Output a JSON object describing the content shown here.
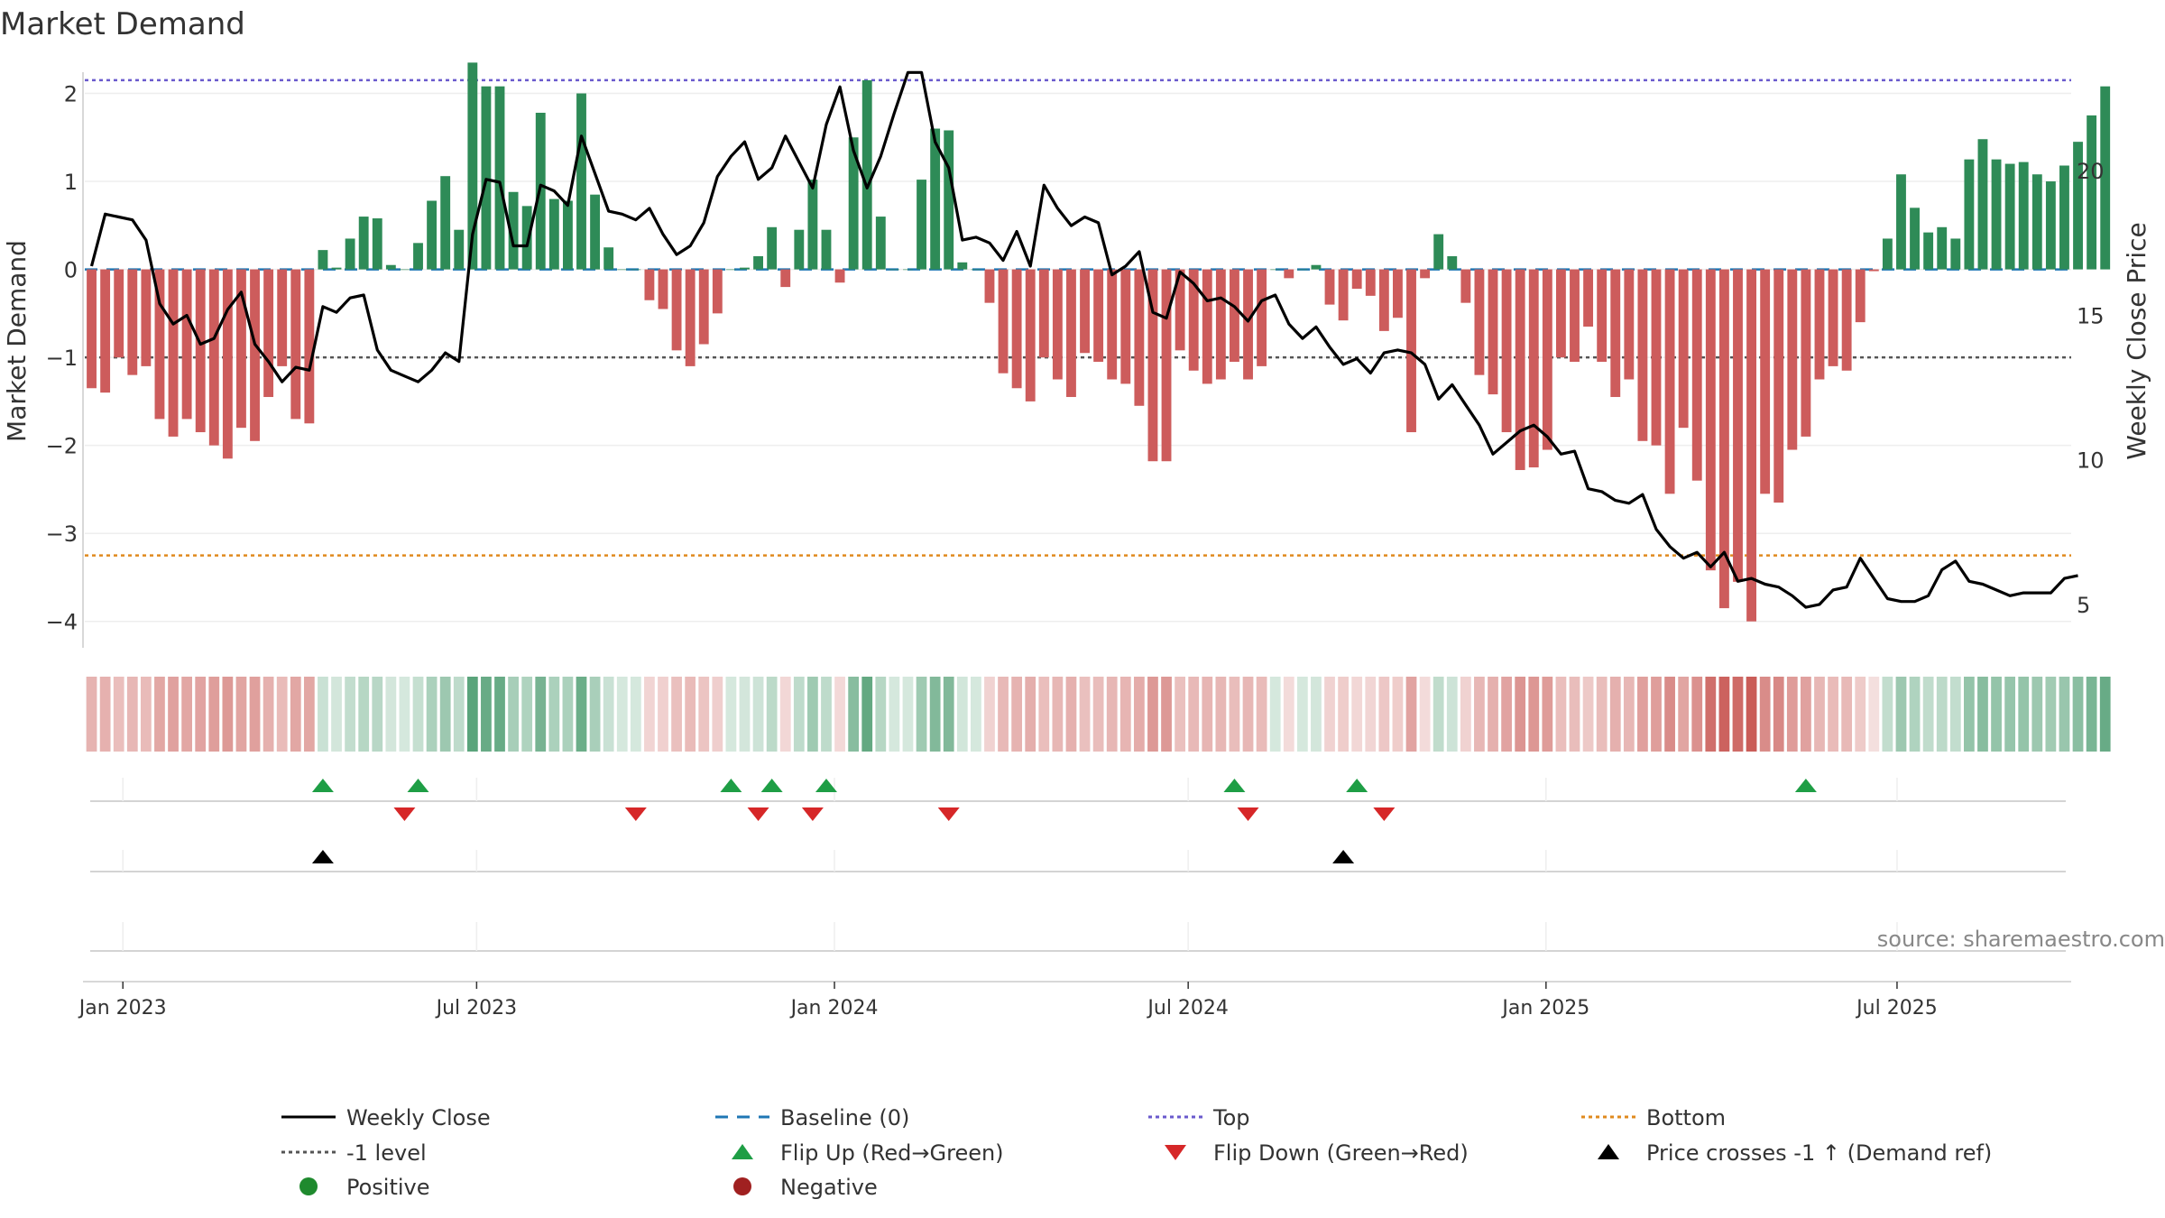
{
  "chart_data": {
    "type": "bar",
    "title": "Market Demand",
    "ylabel_left": "Market Demand",
    "ylabel_right": "Weekly Close Price",
    "ylim_left": [
      -4.3,
      2.6
    ],
    "ylim_right": [
      3.5,
      24.5
    ],
    "yticks_left": [
      2,
      1,
      0,
      -1,
      -2,
      -3,
      -4
    ],
    "yticks_left_labels": [
      "2",
      "1",
      "0",
      "−1",
      "−2",
      "−3",
      "−4"
    ],
    "yticks_right": [
      20,
      15,
      10,
      5
    ],
    "yticks_right_labels": [
      "20",
      "15",
      "10",
      "5"
    ],
    "x_start": "2022-12-26",
    "week_count": 146,
    "xticks": [
      {
        "week": 2.3,
        "label": "Jan 2023"
      },
      {
        "week": 28.3,
        "label": "Jul 2023"
      },
      {
        "week": 54.6,
        "label": "Jan 2024"
      },
      {
        "week": 80.6,
        "label": "Jul 2024"
      },
      {
        "week": 106.9,
        "label": "Jan 2025"
      },
      {
        "week": 132.7,
        "label": "Jul 2025"
      }
    ],
    "reference_lines": {
      "top": 2.15,
      "bottom": -3.25,
      "minus_one": -1,
      "baseline": 0
    },
    "demand": [
      -1.35,
      -1.4,
      -1.0,
      -1.2,
      -1.1,
      -1.7,
      -1.9,
      -1.7,
      -1.85,
      -2.0,
      -2.15,
      -1.8,
      -1.95,
      -1.45,
      -1.1,
      -1.7,
      -1.75,
      0.22,
      0.02,
      0.35,
      0.6,
      0.58,
      0.05,
      0.0,
      0.3,
      0.78,
      1.06,
      0.45,
      2.35,
      2.08,
      2.08,
      0.88,
      0.72,
      1.78,
      0.8,
      0.78,
      2.0,
      0.85,
      0.25,
      0.0,
      0.0,
      -0.35,
      -0.45,
      -0.92,
      -1.1,
      -0.85,
      -0.5,
      0.0,
      0.02,
      0.15,
      0.48,
      -0.2,
      0.45,
      1.02,
      0.45,
      -0.15,
      1.5,
      2.15,
      0.6,
      0.0,
      0.0,
      1.02,
      1.6,
      1.58,
      0.08,
      0.0,
      -0.38,
      -1.18,
      -1.35,
      -1.5,
      -1.0,
      -1.25,
      -1.45,
      -0.95,
      -1.05,
      -1.25,
      -1.3,
      -1.55,
      -2.18,
      -2.18,
      -0.92,
      -1.15,
      -1.3,
      -1.25,
      -1.05,
      -1.25,
      -1.1,
      0.0,
      -0.1,
      0.0,
      0.05,
      -0.4,
      -0.58,
      -0.22,
      -0.3,
      -0.7,
      -0.55,
      -1.85,
      -0.1,
      0.4,
      0.15,
      -0.38,
      -1.2,
      -1.42,
      -1.85,
      -2.28,
      -2.25,
      -2.05,
      -1.0,
      -1.05,
      -0.65,
      -1.05,
      -1.45,
      -1.25,
      -1.95,
      -2.0,
      -2.55,
      -1.8,
      -2.4,
      -3.42,
      -3.85,
      -3.55,
      -4.0,
      -2.55,
      -2.65,
      -2.05,
      -1.9,
      -1.25,
      -1.1,
      -1.15,
      -0.6,
      -0.02,
      0.35,
      1.08,
      0.7,
      0.42,
      0.48,
      0.35,
      1.25,
      1.48,
      1.25,
      1.2,
      1.22,
      1.08,
      1.0,
      1.18,
      1.45,
      1.75,
      2.08
    ],
    "weekly_close": [
      16.7,
      18.5,
      18.4,
      18.3,
      17.6,
      15.4,
      14.7,
      15.0,
      14.0,
      14.2,
      15.2,
      15.8,
      14.0,
      13.4,
      12.7,
      13.2,
      13.1,
      15.3,
      15.1,
      15.6,
      15.7,
      13.8,
      13.1,
      12.9,
      12.7,
      13.1,
      13.7,
      13.4,
      17.8,
      19.7,
      19.6,
      17.4,
      17.4,
      19.5,
      19.3,
      18.8,
      21.2,
      19.9,
      18.6,
      18.5,
      18.3,
      18.7,
      17.8,
      17.1,
      17.4,
      18.2,
      19.8,
      20.5,
      21.0,
      19.7,
      20.1,
      21.2,
      20.3,
      19.4,
      21.6,
      22.9,
      20.7,
      19.4,
      20.5,
      22.0,
      23.4,
      23.4,
      21.0,
      20.1,
      17.6,
      17.7,
      17.5,
      16.9,
      17.9,
      16.7,
      19.5,
      18.7,
      18.1,
      18.4,
      18.2,
      16.4,
      16.7,
      17.2,
      15.1,
      14.9,
      16.5,
      16.1,
      15.5,
      15.6,
      15.3,
      14.8,
      15.5,
      15.7,
      14.7,
      14.2,
      14.6,
      13.9,
      13.3,
      13.5,
      13.0,
      13.7,
      13.8,
      13.7,
      13.3,
      12.1,
      12.6,
      11.9,
      11.2,
      10.2,
      10.6,
      11.0,
      11.2,
      10.8,
      10.2,
      10.3,
      9.0,
      8.9,
      8.6,
      8.5,
      8.8,
      7.6,
      7.0,
      6.6,
      6.8,
      6.3,
      6.8,
      5.8,
      5.9,
      5.7,
      5.6,
      5.3,
      4.9,
      5.0,
      5.5,
      5.6,
      6.6,
      5.9,
      5.2,
      5.1,
      5.1,
      5.3,
      6.2,
      6.5,
      5.8,
      5.7,
      5.5,
      5.3,
      5.4,
      5.4,
      5.4,
      5.9,
      6.0
    ],
    "flip_up_weeks": [
      17,
      24,
      47,
      50,
      54,
      84,
      93,
      126
    ],
    "flip_down_weeks": [
      23,
      40,
      49,
      53,
      63,
      85,
      95
    ],
    "price_cross_weeks": [
      17,
      92
    ],
    "source": "source: sharemaestro.com"
  },
  "legend": {
    "items": [
      {
        "label": "Weekly Close",
        "symbol": "solid-line",
        "color": "#000000"
      },
      {
        "label": "Baseline (0)",
        "symbol": "dash-line",
        "color": "#1f77b4"
      },
      {
        "label": "Top",
        "symbol": "dot-line",
        "color": "#6a5acd"
      },
      {
        "label": "Bottom",
        "symbol": "dot-line",
        "color": "#e08a1e"
      },
      {
        "label": "-1 level",
        "symbol": "dot-line",
        "color": "#555555"
      },
      {
        "label": "Flip Up (Red→Green)",
        "symbol": "triangle-up",
        "color": "#1e9e45"
      },
      {
        "label": "Flip Down (Green→Red)",
        "symbol": "triangle-down",
        "color": "#d62728"
      },
      {
        "label": "Price crosses -1 ↑ (Demand ref)",
        "symbol": "triangle-up",
        "color": "#000000"
      },
      {
        "label": "Positive",
        "symbol": "circle",
        "color": "#1f8a2e"
      },
      {
        "label": "Negative",
        "symbol": "circle",
        "color": "#a02020"
      }
    ]
  },
  "colors": {
    "positive_bar": "#2e8b57",
    "negative_bar": "#cd5c5c",
    "close_line": "#000000",
    "baseline": "#1f77b4",
    "top_line": "#6a5acd",
    "bottom_line": "#e08a1e",
    "minus_one_line": "#555555",
    "flip_up": "#1e9e45",
    "flip_down": "#d62728",
    "price_cross": "#000000"
  }
}
